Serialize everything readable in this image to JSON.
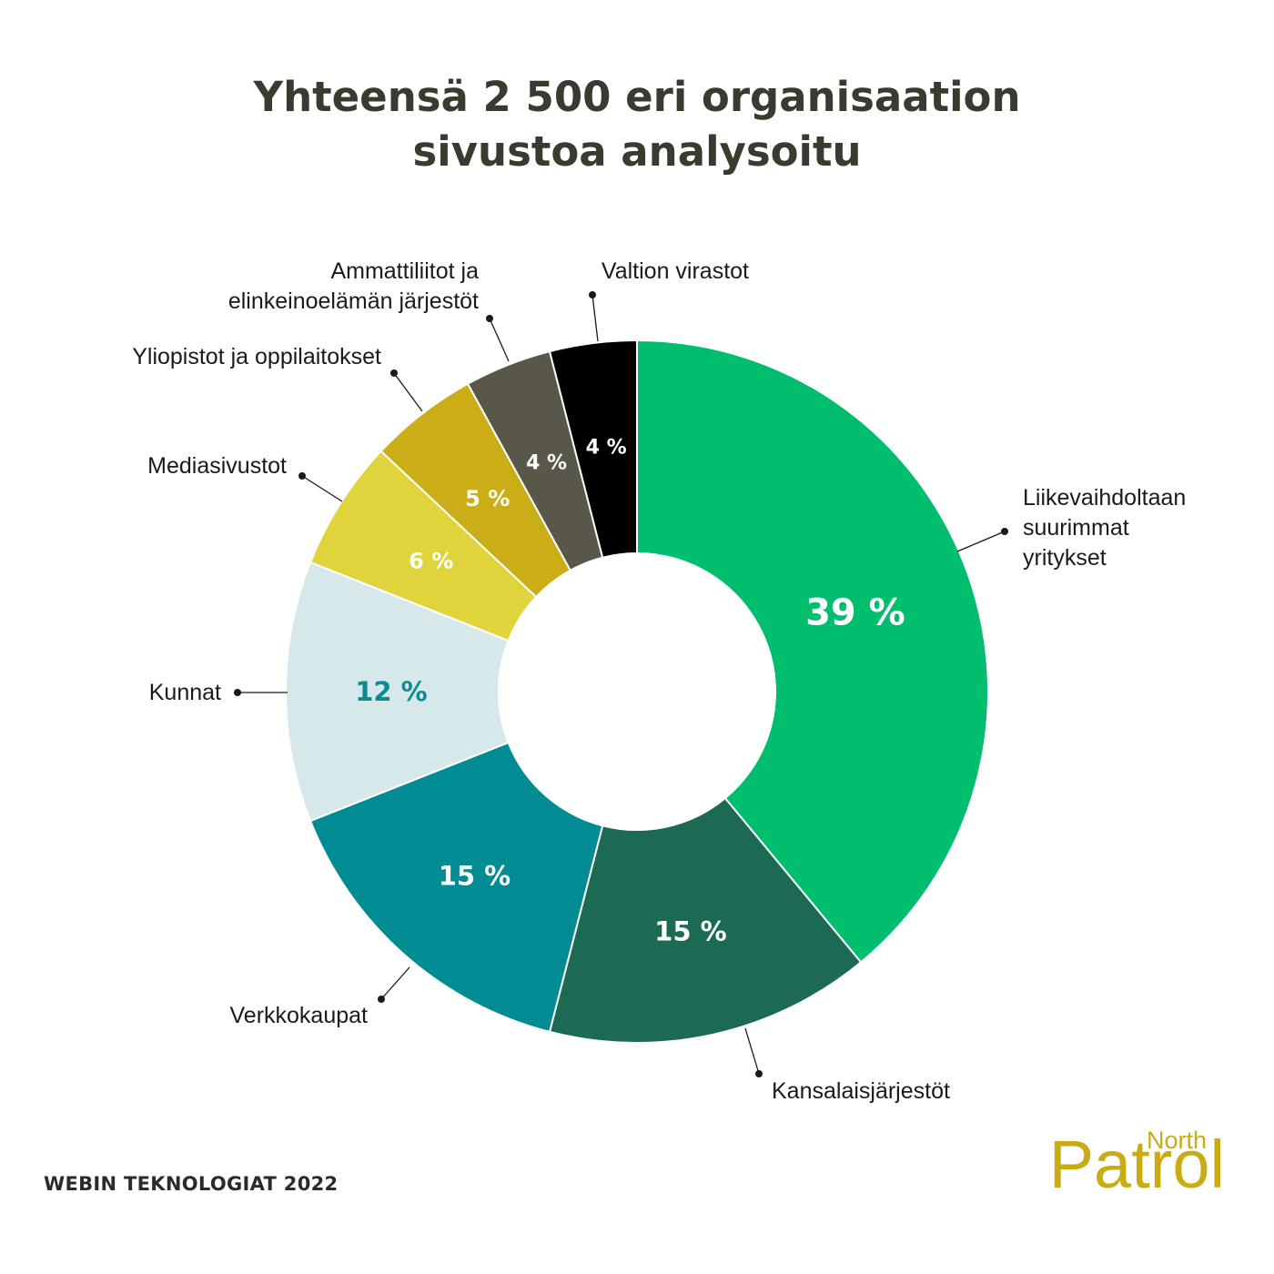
{
  "title": {
    "line1": "Yhteensä 2 500 eri organisaation",
    "line2": "sivustoa analysoitu"
  },
  "footer": "WEBIN TEKNOLOGIAT 2022",
  "brand": {
    "small": "North",
    "big": "Patrol",
    "color": "#c9ab14"
  },
  "chart_data": {
    "type": "pie",
    "donut": true,
    "unit": "%",
    "slices": [
      {
        "label": [
          "Liikevaihdoltaan",
          "suurimmat",
          "yritykset"
        ],
        "value": 39,
        "display": "39 %",
        "color": "#00be6e",
        "text_color": "#ffffff"
      },
      {
        "label": [
          "Kansalaisjärjestöt"
        ],
        "value": 15,
        "display": "15 %",
        "color": "#1c6a54",
        "text_color": "#ffffff"
      },
      {
        "label": [
          "Verkkokaupat"
        ],
        "value": 15,
        "display": "15 %",
        "color": "#018b92",
        "text_color": "#ffffff"
      },
      {
        "label": [
          "Kunnat"
        ],
        "value": 12,
        "display": "12 %",
        "color": "#d7e8ea",
        "text_color": "#0f8b93"
      },
      {
        "label": [
          "Mediasivustot"
        ],
        "value": 6,
        "display": "6 %",
        "color": "#dfd43b",
        "text_color": "#ffffff"
      },
      {
        "label": [
          "Yliopistot ja oppilaitokset"
        ],
        "value": 5,
        "display": "5 %",
        "color": "#cbae17",
        "text_color": "#ffffff"
      },
      {
        "label": [
          "Ammattiliitot ja",
          "elinkeinoelämän järjestöt"
        ],
        "value": 4,
        "display": "4 %",
        "color": "#58574a",
        "text_color": "#ffffff"
      },
      {
        "label": [
          "Valtion virastot"
        ],
        "value": 4,
        "display": "4 %",
        "color": "#000000",
        "text_color": "#ffffff"
      }
    ]
  }
}
